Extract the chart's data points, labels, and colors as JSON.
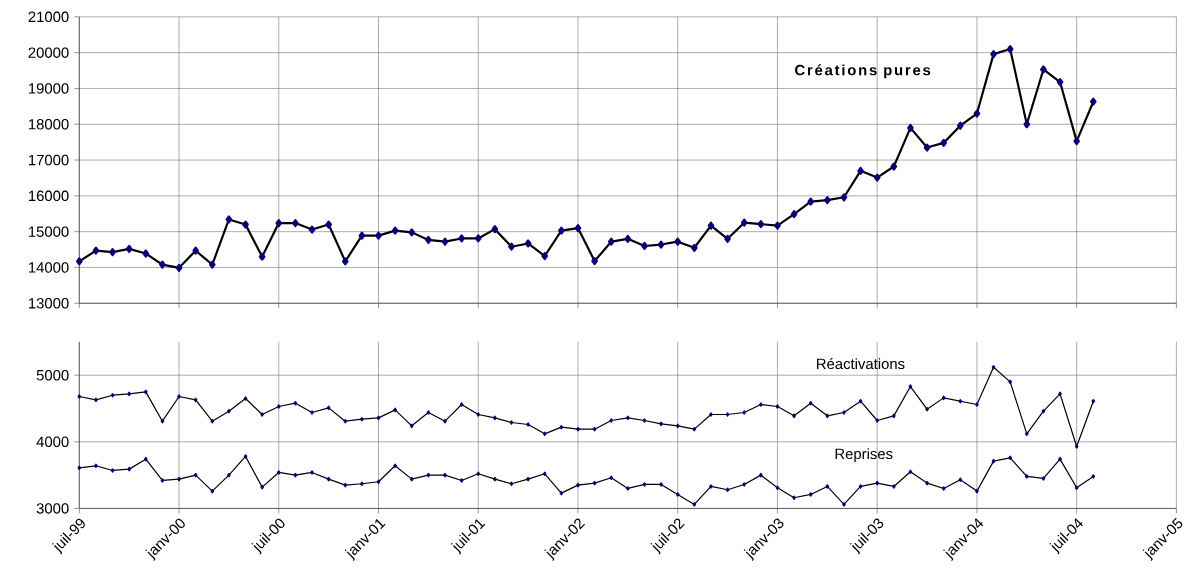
{
  "chart_data": [
    {
      "type": "line",
      "x": [
        "1999-07",
        "1999-08",
        "1999-09",
        "1999-10",
        "1999-11",
        "1999-12",
        "2000-01",
        "2000-02",
        "2000-03",
        "2000-04",
        "2000-05",
        "2000-06",
        "2000-07",
        "2000-08",
        "2000-09",
        "2000-10",
        "2000-11",
        "2000-12",
        "2001-01",
        "2001-02",
        "2001-03",
        "2001-04",
        "2001-05",
        "2001-06",
        "2001-07",
        "2001-08",
        "2001-09",
        "2001-10",
        "2001-11",
        "2001-12",
        "2002-01",
        "2002-02",
        "2002-03",
        "2002-04",
        "2002-05",
        "2002-06",
        "2002-07",
        "2002-08",
        "2002-09",
        "2002-10",
        "2002-11",
        "2002-12",
        "2003-01",
        "2003-02",
        "2003-03",
        "2003-04",
        "2003-05",
        "2003-06",
        "2003-07",
        "2003-08",
        "2003-09",
        "2003-10",
        "2003-11",
        "2003-12",
        "2004-01",
        "2004-02",
        "2004-03",
        "2004-04",
        "2004-05",
        "2004-06",
        "2004-07",
        "2004-08"
      ],
      "xlim": [
        "1999-07",
        "2005-01"
      ],
      "xticks": [
        {
          "value": "1999-07",
          "label": null
        },
        {
          "value": "2000-01",
          "label": null
        },
        {
          "value": "2000-07",
          "label": null
        },
        {
          "value": "2001-01",
          "label": null
        },
        {
          "value": "2001-07",
          "label": null
        },
        {
          "value": "2002-01",
          "label": null
        },
        {
          "value": "2002-07",
          "label": null
        },
        {
          "value": "2003-01",
          "label": null
        },
        {
          "value": "2003-07",
          "label": null
        },
        {
          "value": "2004-01",
          "label": null
        },
        {
          "value": "2004-07",
          "label": null
        },
        {
          "value": "2005-01",
          "label": null
        }
      ],
      "ylim": [
        13000,
        21000
      ],
      "yticks": [
        13000,
        14000,
        15000,
        16000,
        17000,
        18000,
        19000,
        20000,
        21000
      ],
      "grid": true,
      "marker": "diamond",
      "tick_labels": "y",
      "series": [
        {
          "name": "Créations pures",
          "color": "#000000",
          "values": [
            14170,
            14470,
            14430,
            14520,
            14390,
            14080,
            13990,
            14470,
            14080,
            15340,
            15200,
            14300,
            15240,
            15240,
            15060,
            15200,
            14170,
            14890,
            14890,
            15030,
            14980,
            14770,
            14720,
            14810,
            14810,
            15070,
            14580,
            14670,
            14320,
            15030,
            15100,
            14180,
            14720,
            14800,
            14600,
            14640,
            14720,
            14550,
            15170,
            14800,
            15250,
            15210,
            15170,
            15490,
            15840,
            15880,
            15960,
            16700,
            16510,
            16820,
            17900,
            17350,
            17480,
            17960,
            18300,
            19960,
            20100,
            18000,
            19530,
            19180,
            17530,
            18630
          ]
        }
      ]
    },
    {
      "type": "line",
      "x": [
        "1999-07",
        "1999-08",
        "1999-09",
        "1999-10",
        "1999-11",
        "1999-12",
        "2000-01",
        "2000-02",
        "2000-03",
        "2000-04",
        "2000-05",
        "2000-06",
        "2000-07",
        "2000-08",
        "2000-09",
        "2000-10",
        "2000-11",
        "2000-12",
        "2001-01",
        "2001-02",
        "2001-03",
        "2001-04",
        "2001-05",
        "2001-06",
        "2001-07",
        "2001-08",
        "2001-09",
        "2001-10",
        "2001-11",
        "2001-12",
        "2002-01",
        "2002-02",
        "2002-03",
        "2002-04",
        "2002-05",
        "2002-06",
        "2002-07",
        "2002-08",
        "2002-09",
        "2002-10",
        "2002-11",
        "2002-12",
        "2003-01",
        "2003-02",
        "2003-03",
        "2003-04",
        "2003-05",
        "2003-06",
        "2003-07",
        "2003-08",
        "2003-09",
        "2003-10",
        "2003-11",
        "2003-12",
        "2004-01",
        "2004-02",
        "2004-03",
        "2004-04",
        "2004-05",
        "2004-06",
        "2004-07",
        "2004-08"
      ],
      "xlim": [
        "1999-07",
        "2005-01"
      ],
      "xticks": [
        {
          "value": "1999-07",
          "label": "juil-99"
        },
        {
          "value": "2000-01",
          "label": "janv-00"
        },
        {
          "value": "2000-07",
          "label": "juil-00"
        },
        {
          "value": "2001-01",
          "label": "janv-01"
        },
        {
          "value": "2001-07",
          "label": "juil-01"
        },
        {
          "value": "2002-01",
          "label": "janv-02"
        },
        {
          "value": "2002-07",
          "label": "juil-02"
        },
        {
          "value": "2003-01",
          "label": "janv-03"
        },
        {
          "value": "2003-07",
          "label": "juil-03"
        },
        {
          "value": "2004-01",
          "label": "janv-04"
        },
        {
          "value": "2004-07",
          "label": "juil-04"
        },
        {
          "value": "2005-01",
          "label": "janv-05"
        }
      ],
      "ylim": [
        3000,
        5500
      ],
      "yticks": [
        3000,
        4000,
        5000
      ],
      "grid": true,
      "marker": "diamond",
      "series": [
        {
          "name": "Réactivations",
          "color": "#000000",
          "values": [
            4680,
            4630,
            4700,
            4720,
            4750,
            4310,
            4680,
            4630,
            4310,
            4460,
            4650,
            4410,
            4530,
            4580,
            4440,
            4510,
            4310,
            4340,
            4360,
            4480,
            4240,
            4440,
            4310,
            4560,
            4410,
            4360,
            4290,
            4260,
            4120,
            4220,
            4190,
            4190,
            4320,
            4360,
            4320,
            4270,
            4240,
            4190,
            4410,
            4410,
            4440,
            4560,
            4530,
            4390,
            4580,
            4390,
            4440,
            4610,
            4320,
            4390,
            4830,
            4490,
            4660,
            4610,
            4560,
            5120,
            4900,
            4120,
            4460,
            4720,
            3930,
            4610
          ]
        },
        {
          "name": "Reprises",
          "color": "#000000",
          "values": [
            3610,
            3640,
            3570,
            3590,
            3740,
            3420,
            3440,
            3500,
            3260,
            3500,
            3780,
            3320,
            3540,
            3500,
            3540,
            3440,
            3350,
            3370,
            3400,
            3640,
            3440,
            3500,
            3500,
            3420,
            3520,
            3440,
            3370,
            3440,
            3520,
            3230,
            3350,
            3380,
            3460,
            3300,
            3360,
            3360,
            3210,
            3060,
            3330,
            3280,
            3360,
            3500,
            3310,
            3160,
            3210,
            3330,
            3060,
            3330,
            3380,
            3330,
            3550,
            3380,
            3300,
            3430,
            3260,
            3710,
            3760,
            3480,
            3450,
            3740,
            3310,
            3480
          ]
        }
      ]
    }
  ]
}
